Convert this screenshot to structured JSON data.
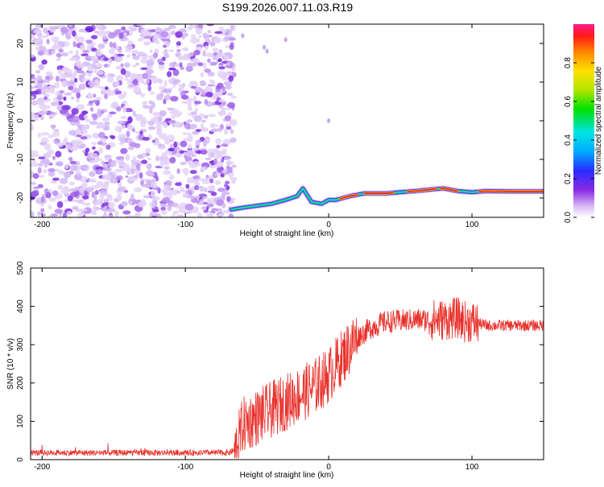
{
  "figure": {
    "title": "S199.2026.007.11.03.R19"
  },
  "chart_data": [
    {
      "type": "heatmap",
      "title": "S199.2026.007.11.03.R19",
      "xlabel": "Height of straight line (km)",
      "ylabel": "Frequency (Hz)",
      "xlim": [
        -208,
        150
      ],
      "ylim": [
        -25,
        25
      ],
      "xticks": [
        -200,
        -100,
        0,
        100
      ],
      "yticks": [
        -20,
        -10,
        0,
        10,
        20
      ],
      "xtick_labels": [
        "-200",
        "-100",
        "0",
        "100"
      ],
      "ytick_labels": [
        "-20",
        "-10",
        "0",
        "10",
        "20"
      ],
      "noise_region_x": [
        -208,
        -68
      ],
      "signal_track": {
        "x": [
          -68,
          -60,
          -50,
          -40,
          -30,
          -22,
          -18,
          -12,
          -5,
          0,
          5,
          15,
          25,
          40,
          60,
          80,
          90,
          100,
          110,
          130,
          150
        ],
        "y": [
          -23,
          -22.5,
          -22,
          -21.5,
          -20.5,
          -19.5,
          -17.5,
          -21,
          -21.5,
          -20.5,
          -20.5,
          -19.5,
          -18.8,
          -18.8,
          -18.2,
          -17.5,
          -18.2,
          -18.5,
          -18.2,
          -18.3,
          -18.3
        ]
      },
      "colorbar": {
        "label": "Normalized spectral amplitude",
        "range": [
          0,
          1
        ],
        "ticks": [
          0.0,
          0.2,
          0.4,
          0.6,
          0.8
        ],
        "tick_labels": [
          "0.0",
          "0.2",
          "0.4",
          "0.6",
          "0.8"
        ]
      }
    },
    {
      "type": "line",
      "xlabel": "Height of straight line (km)",
      "ylabel": "SNR (10 * v/v)",
      "xlim": [
        -208,
        150
      ],
      "ylim": [
        0,
        500
      ],
      "xticks": [
        -200,
        -100,
        0,
        100
      ],
      "yticks": [
        0,
        100,
        200,
        300,
        400,
        500
      ],
      "xtick_labels": [
        "-200",
        "-100",
        "0",
        "100"
      ],
      "ytick_labels": [
        "0",
        "100",
        "200",
        "300",
        "400",
        "500"
      ],
      "color": "#e8302a",
      "series": [
        {
          "name": "SNR",
          "x": [
            -208,
            -150,
            -100,
            -70,
            -65,
            -60,
            -50,
            -40,
            -30,
            -20,
            -10,
            0,
            10,
            20,
            30,
            40,
            50,
            60,
            70,
            80,
            90,
            95,
            100,
            105,
            110,
            120,
            130,
            140,
            150
          ],
          "y": [
            18,
            18,
            18,
            18,
            25,
            90,
            110,
            130,
            150,
            170,
            190,
            220,
            270,
            320,
            345,
            360,
            362,
            365,
            365,
            365,
            370,
            360,
            360,
            355,
            350,
            350,
            350,
            350,
            350
          ]
        }
      ]
    }
  ]
}
